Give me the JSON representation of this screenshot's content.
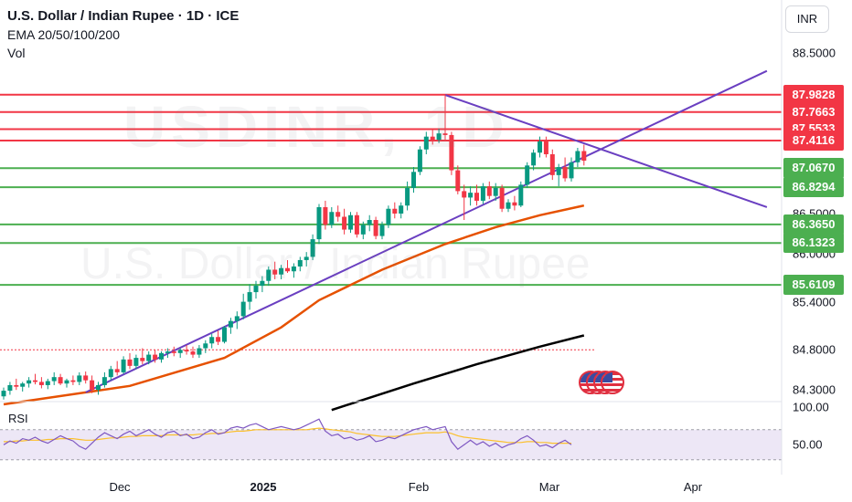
{
  "header": {
    "title": "U.S. Dollar / Indian Rupee · 1D · ICE",
    "indicators": "EMA 20/50/100/200",
    "volume": "Vol"
  },
  "currency_button": "INR",
  "watermark": {
    "ticker": "USDINR, 1D",
    "name": "U.S. Dollar / Indian Rupee"
  },
  "rsi_label": "RSI",
  "icons": [
    "us-flag-icon"
  ],
  "chart_data": [
    {
      "type": "candlestick",
      "title": "U.S. Dollar / Indian Rupee · 1D · ICE",
      "x_ticks": [
        "Dec",
        "2025",
        "Feb",
        "Mar",
        "Apr"
      ],
      "y_ticks": [
        "88.5000",
        "86.5000",
        "86.0000",
        "85.4000",
        "84.8000",
        "84.3000"
      ],
      "ylim": [
        84.2,
        88.8
      ],
      "candles": [
        {
          "o": 84.22,
          "h": 84.33,
          "l": 84.18,
          "c": 84.29
        },
        {
          "o": 84.29,
          "h": 84.4,
          "l": 84.24,
          "c": 84.36
        },
        {
          "o": 84.36,
          "h": 84.44,
          "l": 84.3,
          "c": 84.34
        },
        {
          "o": 84.34,
          "h": 84.4,
          "l": 84.28,
          "c": 84.38
        },
        {
          "o": 84.38,
          "h": 84.46,
          "l": 84.33,
          "c": 84.42
        },
        {
          "o": 84.42,
          "h": 84.5,
          "l": 84.37,
          "c": 84.4
        },
        {
          "o": 84.4,
          "h": 84.46,
          "l": 84.32,
          "c": 84.36
        },
        {
          "o": 84.36,
          "h": 84.44,
          "l": 84.31,
          "c": 84.41
        },
        {
          "o": 84.41,
          "h": 84.52,
          "l": 84.36,
          "c": 84.46
        },
        {
          "o": 84.46,
          "h": 84.5,
          "l": 84.36,
          "c": 84.38
        },
        {
          "o": 84.38,
          "h": 84.44,
          "l": 84.33,
          "c": 84.42
        },
        {
          "o": 84.42,
          "h": 84.48,
          "l": 84.36,
          "c": 84.4
        },
        {
          "o": 84.4,
          "h": 84.52,
          "l": 84.36,
          "c": 84.48
        },
        {
          "o": 84.48,
          "h": 84.53,
          "l": 84.38,
          "c": 84.42
        },
        {
          "o": 84.42,
          "h": 84.48,
          "l": 84.26,
          "c": 84.3
        },
        {
          "o": 84.3,
          "h": 84.4,
          "l": 84.24,
          "c": 84.36
        },
        {
          "o": 84.36,
          "h": 84.52,
          "l": 84.33,
          "c": 84.46
        },
        {
          "o": 84.46,
          "h": 84.6,
          "l": 84.42,
          "c": 84.56
        },
        {
          "o": 84.56,
          "h": 84.66,
          "l": 84.48,
          "c": 84.52
        },
        {
          "o": 84.52,
          "h": 84.72,
          "l": 84.5,
          "c": 84.68
        },
        {
          "o": 84.68,
          "h": 84.76,
          "l": 84.56,
          "c": 84.6
        },
        {
          "o": 84.6,
          "h": 84.74,
          "l": 84.56,
          "c": 84.7
        },
        {
          "o": 84.7,
          "h": 84.82,
          "l": 84.62,
          "c": 84.66
        },
        {
          "o": 84.66,
          "h": 84.78,
          "l": 84.62,
          "c": 84.74
        },
        {
          "o": 84.74,
          "h": 84.8,
          "l": 84.64,
          "c": 84.68
        },
        {
          "o": 84.68,
          "h": 84.78,
          "l": 84.64,
          "c": 84.76
        },
        {
          "o": 84.76,
          "h": 84.82,
          "l": 84.7,
          "c": 84.78
        },
        {
          "o": 84.78,
          "h": 84.84,
          "l": 84.72,
          "c": 84.76
        },
        {
          "o": 84.76,
          "h": 84.82,
          "l": 84.7,
          "c": 84.8
        },
        {
          "o": 84.8,
          "h": 84.86,
          "l": 84.74,
          "c": 84.78
        },
        {
          "o": 84.78,
          "h": 84.84,
          "l": 84.7,
          "c": 84.74
        },
        {
          "o": 84.74,
          "h": 84.86,
          "l": 84.7,
          "c": 84.82
        },
        {
          "o": 84.82,
          "h": 84.92,
          "l": 84.76,
          "c": 84.88
        },
        {
          "o": 84.88,
          "h": 85.0,
          "l": 84.82,
          "c": 84.96
        },
        {
          "o": 84.96,
          "h": 85.04,
          "l": 84.86,
          "c": 84.9
        },
        {
          "o": 84.9,
          "h": 85.1,
          "l": 84.88,
          "c": 85.08
        },
        {
          "o": 85.08,
          "h": 85.2,
          "l": 85.0,
          "c": 85.16
        },
        {
          "o": 85.16,
          "h": 85.28,
          "l": 85.06,
          "c": 85.22
        },
        {
          "o": 85.22,
          "h": 85.5,
          "l": 85.18,
          "c": 85.4
        },
        {
          "o": 85.4,
          "h": 85.62,
          "l": 85.3,
          "c": 85.52
        },
        {
          "o": 85.52,
          "h": 85.66,
          "l": 85.44,
          "c": 85.6
        },
        {
          "o": 85.6,
          "h": 85.72,
          "l": 85.52,
          "c": 85.66
        },
        {
          "o": 85.66,
          "h": 85.84,
          "l": 85.6,
          "c": 85.8
        },
        {
          "o": 85.8,
          "h": 85.9,
          "l": 85.68,
          "c": 85.74
        },
        {
          "o": 85.74,
          "h": 85.86,
          "l": 85.68,
          "c": 85.82
        },
        {
          "o": 85.82,
          "h": 85.92,
          "l": 85.76,
          "c": 85.78
        },
        {
          "o": 85.78,
          "h": 85.88,
          "l": 85.7,
          "c": 85.84
        },
        {
          "o": 85.84,
          "h": 85.96,
          "l": 85.78,
          "c": 85.92
        },
        {
          "o": 85.92,
          "h": 86.02,
          "l": 85.84,
          "c": 85.96
        },
        {
          "o": 85.96,
          "h": 86.24,
          "l": 85.92,
          "c": 86.18
        },
        {
          "o": 86.18,
          "h": 86.62,
          "l": 86.12,
          "c": 86.58
        },
        {
          "o": 86.58,
          "h": 86.66,
          "l": 86.3,
          "c": 86.36
        },
        {
          "o": 86.36,
          "h": 86.58,
          "l": 86.32,
          "c": 86.52
        },
        {
          "o": 86.52,
          "h": 86.6,
          "l": 86.4,
          "c": 86.46
        },
        {
          "o": 86.46,
          "h": 86.56,
          "l": 86.24,
          "c": 86.3
        },
        {
          "o": 86.3,
          "h": 86.52,
          "l": 86.26,
          "c": 86.48
        },
        {
          "o": 86.48,
          "h": 86.52,
          "l": 86.2,
          "c": 86.24
        },
        {
          "o": 86.24,
          "h": 86.4,
          "l": 86.18,
          "c": 86.36
        },
        {
          "o": 86.36,
          "h": 86.48,
          "l": 86.28,
          "c": 86.42
        },
        {
          "o": 86.42,
          "h": 86.46,
          "l": 86.18,
          "c": 86.22
        },
        {
          "o": 86.22,
          "h": 86.4,
          "l": 86.18,
          "c": 86.36
        },
        {
          "o": 86.36,
          "h": 86.6,
          "l": 86.32,
          "c": 86.56
        },
        {
          "o": 86.56,
          "h": 86.64,
          "l": 86.44,
          "c": 86.5
        },
        {
          "o": 86.5,
          "h": 86.64,
          "l": 86.44,
          "c": 86.6
        },
        {
          "o": 86.6,
          "h": 86.9,
          "l": 86.54,
          "c": 86.82
        },
        {
          "o": 86.82,
          "h": 87.08,
          "l": 86.76,
          "c": 87.02
        },
        {
          "o": 87.02,
          "h": 87.34,
          "l": 86.98,
          "c": 87.3
        },
        {
          "o": 87.3,
          "h": 87.52,
          "l": 87.24,
          "c": 87.46
        },
        {
          "o": 87.46,
          "h": 87.56,
          "l": 87.36,
          "c": 87.42
        },
        {
          "o": 87.42,
          "h": 87.56,
          "l": 87.38,
          "c": 87.5
        },
        {
          "o": 87.5,
          "h": 87.98,
          "l": 87.4,
          "c": 87.48
        },
        {
          "o": 87.48,
          "h": 87.52,
          "l": 86.98,
          "c": 87.04
        },
        {
          "o": 87.04,
          "h": 87.1,
          "l": 86.74,
          "c": 86.78
        },
        {
          "o": 86.78,
          "h": 86.86,
          "l": 86.42,
          "c": 86.7
        },
        {
          "o": 86.7,
          "h": 86.84,
          "l": 86.6,
          "c": 86.76
        },
        {
          "o": 86.76,
          "h": 86.86,
          "l": 86.6,
          "c": 86.66
        },
        {
          "o": 86.66,
          "h": 86.88,
          "l": 86.62,
          "c": 86.84
        },
        {
          "o": 86.84,
          "h": 86.9,
          "l": 86.68,
          "c": 86.72
        },
        {
          "o": 86.72,
          "h": 86.88,
          "l": 86.66,
          "c": 86.82
        },
        {
          "o": 86.82,
          "h": 86.86,
          "l": 86.52,
          "c": 86.56
        },
        {
          "o": 86.56,
          "h": 86.68,
          "l": 86.52,
          "c": 86.64
        },
        {
          "o": 86.64,
          "h": 86.72,
          "l": 86.54,
          "c": 86.6
        },
        {
          "o": 86.6,
          "h": 86.9,
          "l": 86.58,
          "c": 86.86
        },
        {
          "o": 86.86,
          "h": 87.14,
          "l": 86.82,
          "c": 87.1
        },
        {
          "o": 87.1,
          "h": 87.3,
          "l": 87.04,
          "c": 87.26
        },
        {
          "o": 87.26,
          "h": 87.46,
          "l": 87.2,
          "c": 87.4
        },
        {
          "o": 87.4,
          "h": 87.46,
          "l": 87.2,
          "c": 87.24
        },
        {
          "o": 87.24,
          "h": 87.3,
          "l": 86.92,
          "c": 86.98
        },
        {
          "o": 86.98,
          "h": 87.12,
          "l": 86.84,
          "c": 87.08
        },
        {
          "o": 87.08,
          "h": 87.2,
          "l": 86.9,
          "c": 86.94
        },
        {
          "o": 86.94,
          "h": 87.2,
          "l": 86.9,
          "c": 87.14
        },
        {
          "o": 87.14,
          "h": 87.32,
          "l": 87.08,
          "c": 87.28
        },
        {
          "o": 87.28,
          "h": 87.36,
          "l": 87.1,
          "c": 87.16
        }
      ],
      "ema_lines": [
        {
          "color": "#e65100",
          "points": [
            [
              0,
              84.12
            ],
            [
              20,
              84.35
            ],
            [
              35,
              84.7
            ],
            [
              44,
              85.08
            ],
            [
              50,
              85.42
            ],
            [
              60,
              85.8
            ],
            [
              70,
              86.12
            ],
            [
              78,
              86.33
            ],
            [
              85,
              86.48
            ],
            [
              92,
              86.6
            ]
          ]
        },
        {
          "color": "#000000",
          "points": [
            [
              52,
              84.05
            ],
            [
              65,
              84.38
            ],
            [
              75,
              84.62
            ],
            [
              85,
              84.84
            ],
            [
              92,
              84.98
            ]
          ]
        }
      ],
      "trend_lines": [
        {
          "color": "#6a3fc1",
          "from": [
            13,
            84.27
          ],
          "to": [
            121,
            88.28
          ]
        },
        {
          "color": "#6a3fc1",
          "from": [
            70,
            87.98
          ],
          "to": [
            121,
            86.58
          ]
        }
      ],
      "levels": [
        {
          "label": "87.9828",
          "value": 87.9828,
          "type": "resistance"
        },
        {
          "label": "87.7663",
          "value": 87.7663,
          "type": "resistance"
        },
        {
          "label": "87.5533",
          "value": 87.5533,
          "type": "resistance"
        },
        {
          "label": "87.4116",
          "value": 87.4116,
          "type": "resistance"
        },
        {
          "label": "87.0670",
          "value": 87.067,
          "type": "support"
        },
        {
          "label": "86.8294",
          "value": 86.8294,
          "type": "support"
        },
        {
          "label": "86.3650",
          "value": 86.365,
          "type": "support"
        },
        {
          "label": "86.1323",
          "value": 86.1323,
          "type": "support"
        },
        {
          "label": "85.6109",
          "value": 85.6109,
          "type": "support"
        }
      ],
      "dotted_level": 84.8,
      "colors": {
        "up": "#089981",
        "down": "#f23645",
        "resistance": "#f23645",
        "support": "#4caf50",
        "trend": "#6a3fc1"
      }
    },
    {
      "type": "line",
      "name": "RSI",
      "y_ticks": [
        "100.00",
        "50.00"
      ],
      "ylim": [
        20,
        100
      ],
      "band": [
        30,
        70
      ],
      "rsi": [
        50,
        55,
        52,
        58,
        56,
        60,
        55,
        52,
        57,
        62,
        58,
        55,
        48,
        44,
        52,
        60,
        66,
        62,
        58,
        64,
        68,
        62,
        66,
        70,
        64,
        60,
        66,
        68,
        62,
        64,
        58,
        60,
        66,
        70,
        64,
        66,
        72,
        74,
        72,
        76,
        78,
        74,
        70,
        72,
        74,
        72,
        70,
        72,
        76,
        80,
        84,
        68,
        62,
        64,
        58,
        60,
        56,
        58,
        62,
        54,
        56,
        60,
        58,
        62,
        66,
        70,
        72,
        74,
        70,
        72,
        74,
        54,
        44,
        50,
        56,
        50,
        54,
        48,
        52,
        46,
        50,
        52,
        58,
        62,
        56,
        48,
        50,
        46,
        52,
        56,
        50
      ],
      "ma": [
        54,
        54,
        55,
        55,
        56,
        56,
        56,
        57,
        57,
        58,
        58,
        58,
        57,
        56,
        56,
        57,
        58,
        59,
        59,
        60,
        61,
        61,
        62,
        62,
        62,
        62,
        63,
        63,
        63,
        63,
        63,
        64,
        64,
        65,
        65,
        66,
        67,
        68,
        68,
        69,
        70,
        70,
        70,
        70,
        70,
        70,
        70,
        70,
        70,
        71,
        72,
        71,
        70,
        69,
        68,
        67,
        65,
        64,
        63,
        62,
        61,
        61,
        61,
        62,
        63,
        64,
        65,
        66,
        66,
        66,
        67,
        65,
        62,
        60,
        59,
        58,
        57,
        56,
        55,
        54,
        53,
        53,
        53,
        54,
        54,
        53,
        53,
        52,
        52,
        52,
        52
      ],
      "colors": {
        "rsi": "#7e57c2",
        "ma": "#fbc02d",
        "band": "#ede7f6"
      }
    }
  ]
}
